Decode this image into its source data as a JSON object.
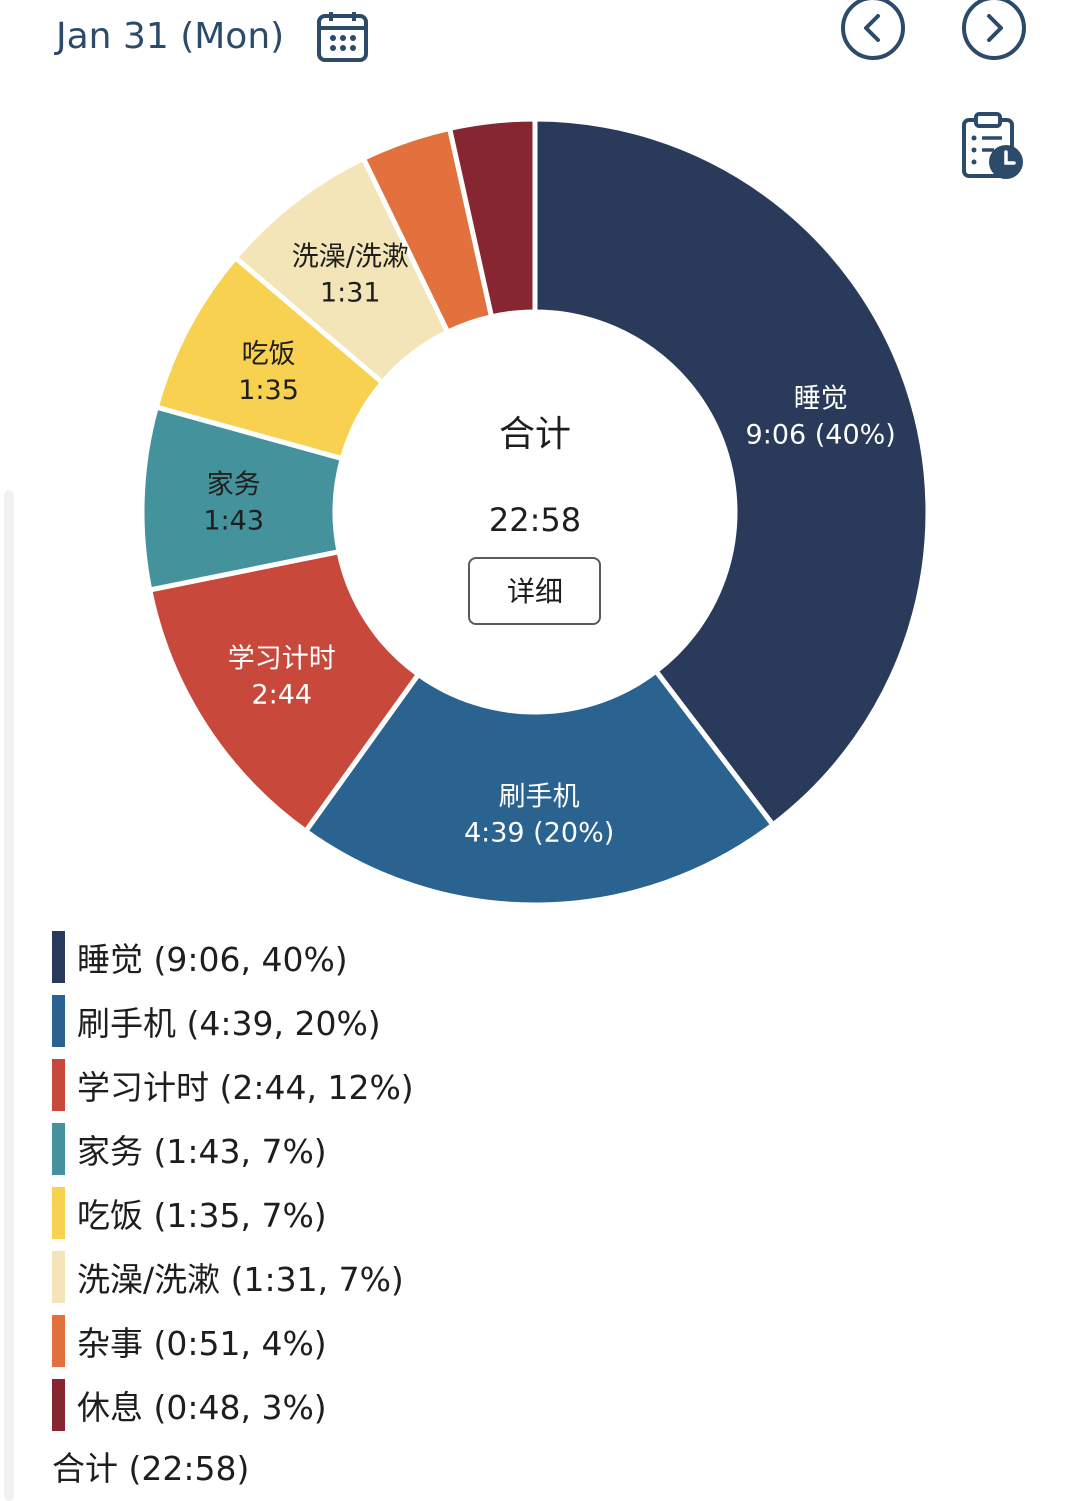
{
  "header": {
    "date": "Jan 31 (Mon)",
    "calendar_icon": "calendar-icon",
    "prev_icon": "chevron-left-circle-icon",
    "next_icon": "chevron-right-circle-icon",
    "report_icon": "clipboard-clock-icon"
  },
  "colors": {
    "header_text": "#2c4a6a",
    "icon": "#2c4a6a"
  },
  "chart_data": {
    "type": "pie",
    "variant": "donut",
    "center": {
      "title": "合计",
      "total": "22:58",
      "button_label": "详细"
    },
    "segments": [
      {
        "name": "睡觉",
        "time": "9:06",
        "minutes": 546,
        "percent": 40,
        "slice_label": "9:06 (40%)",
        "legend": "睡觉 (9:06, 40%)",
        "color": "#2a3a5a",
        "label_color": "#ffffff",
        "show_label": true
      },
      {
        "name": "刷手机",
        "time": "4:39",
        "minutes": 279,
        "percent": 20,
        "slice_label": "4:39 (20%)",
        "legend": "刷手机 (4:39, 20%)",
        "color": "#2a6290",
        "label_color": "#ffffff",
        "show_label": true
      },
      {
        "name": "学习计时",
        "time": "2:44",
        "minutes": 164,
        "percent": 12,
        "slice_label": "2:44",
        "legend": "学习计时 (2:44, 12%)",
        "color": "#c8493b",
        "label_color": "#ffffff",
        "show_label": true
      },
      {
        "name": "家务",
        "time": "1:43",
        "minutes": 103,
        "percent": 7,
        "slice_label": "1:43",
        "legend": "家务 (1:43, 7%)",
        "color": "#43929c",
        "label_color": "#1e1e1e",
        "show_label": true
      },
      {
        "name": "吃饭",
        "time": "1:35",
        "minutes": 95,
        "percent": 7,
        "slice_label": "1:35",
        "legend": "吃饭 (1:35, 7%)",
        "color": "#f7d14f",
        "label_color": "#1e1e1e",
        "show_label": true
      },
      {
        "name": "洗澡/洗漱",
        "time": "1:31",
        "minutes": 91,
        "percent": 7,
        "slice_label": "1:31",
        "legend": "洗澡/洗漱 (1:31, 7%)",
        "color": "#f3e5b8",
        "label_color": "#1e1e1e",
        "show_label": true
      },
      {
        "name": "杂事",
        "time": "0:51",
        "minutes": 51,
        "percent": 4,
        "slice_label": "",
        "legend": "杂事 (0:51, 4%)",
        "color": "#e2713e",
        "label_color": "#1e1e1e",
        "show_label": false
      },
      {
        "name": "休息",
        "time": "0:48",
        "minutes": 48,
        "percent": 3,
        "slice_label": "",
        "legend": "休息 (0:48, 3%)",
        "color": "#862631",
        "label_color": "#ffffff",
        "show_label": false
      }
    ],
    "legend_total": "合计 (22:58)",
    "legend_position": "bottom"
  }
}
